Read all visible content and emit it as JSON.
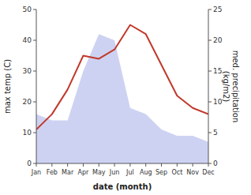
{
  "chart_data": {
    "type": "line",
    "xlabel": "date (month)",
    "ylabel": "max temp (C)",
    "y2label": "med. precipitation\n(kg/m2)",
    "categories": [
      "Jan",
      "Feb",
      "Mar",
      "Apr",
      "May",
      "Jun",
      "Jul",
      "Aug",
      "Sep",
      "Oct",
      "Nov",
      "Dec"
    ],
    "series": [
      {
        "type": "line",
        "color": "#c0392b",
        "values": [
          11,
          16,
          24,
          35,
          34,
          37,
          45,
          42,
          32,
          22,
          18,
          16
        ]
      },
      {
        "type": "area",
        "axis": "y2",
        "color": "#c5caf0",
        "values": [
          8,
          7,
          7,
          15,
          21,
          20,
          9,
          8,
          5.5,
          4.5,
          4.5,
          3.5
        ]
      }
    ],
    "ylim": [
      0,
      50
    ],
    "yticks": [
      0,
      10,
      20,
      30,
      40,
      50
    ],
    "y2lim": [
      0,
      25
    ],
    "y2ticks": [
      0,
      5,
      10,
      15,
      20,
      25
    ]
  }
}
